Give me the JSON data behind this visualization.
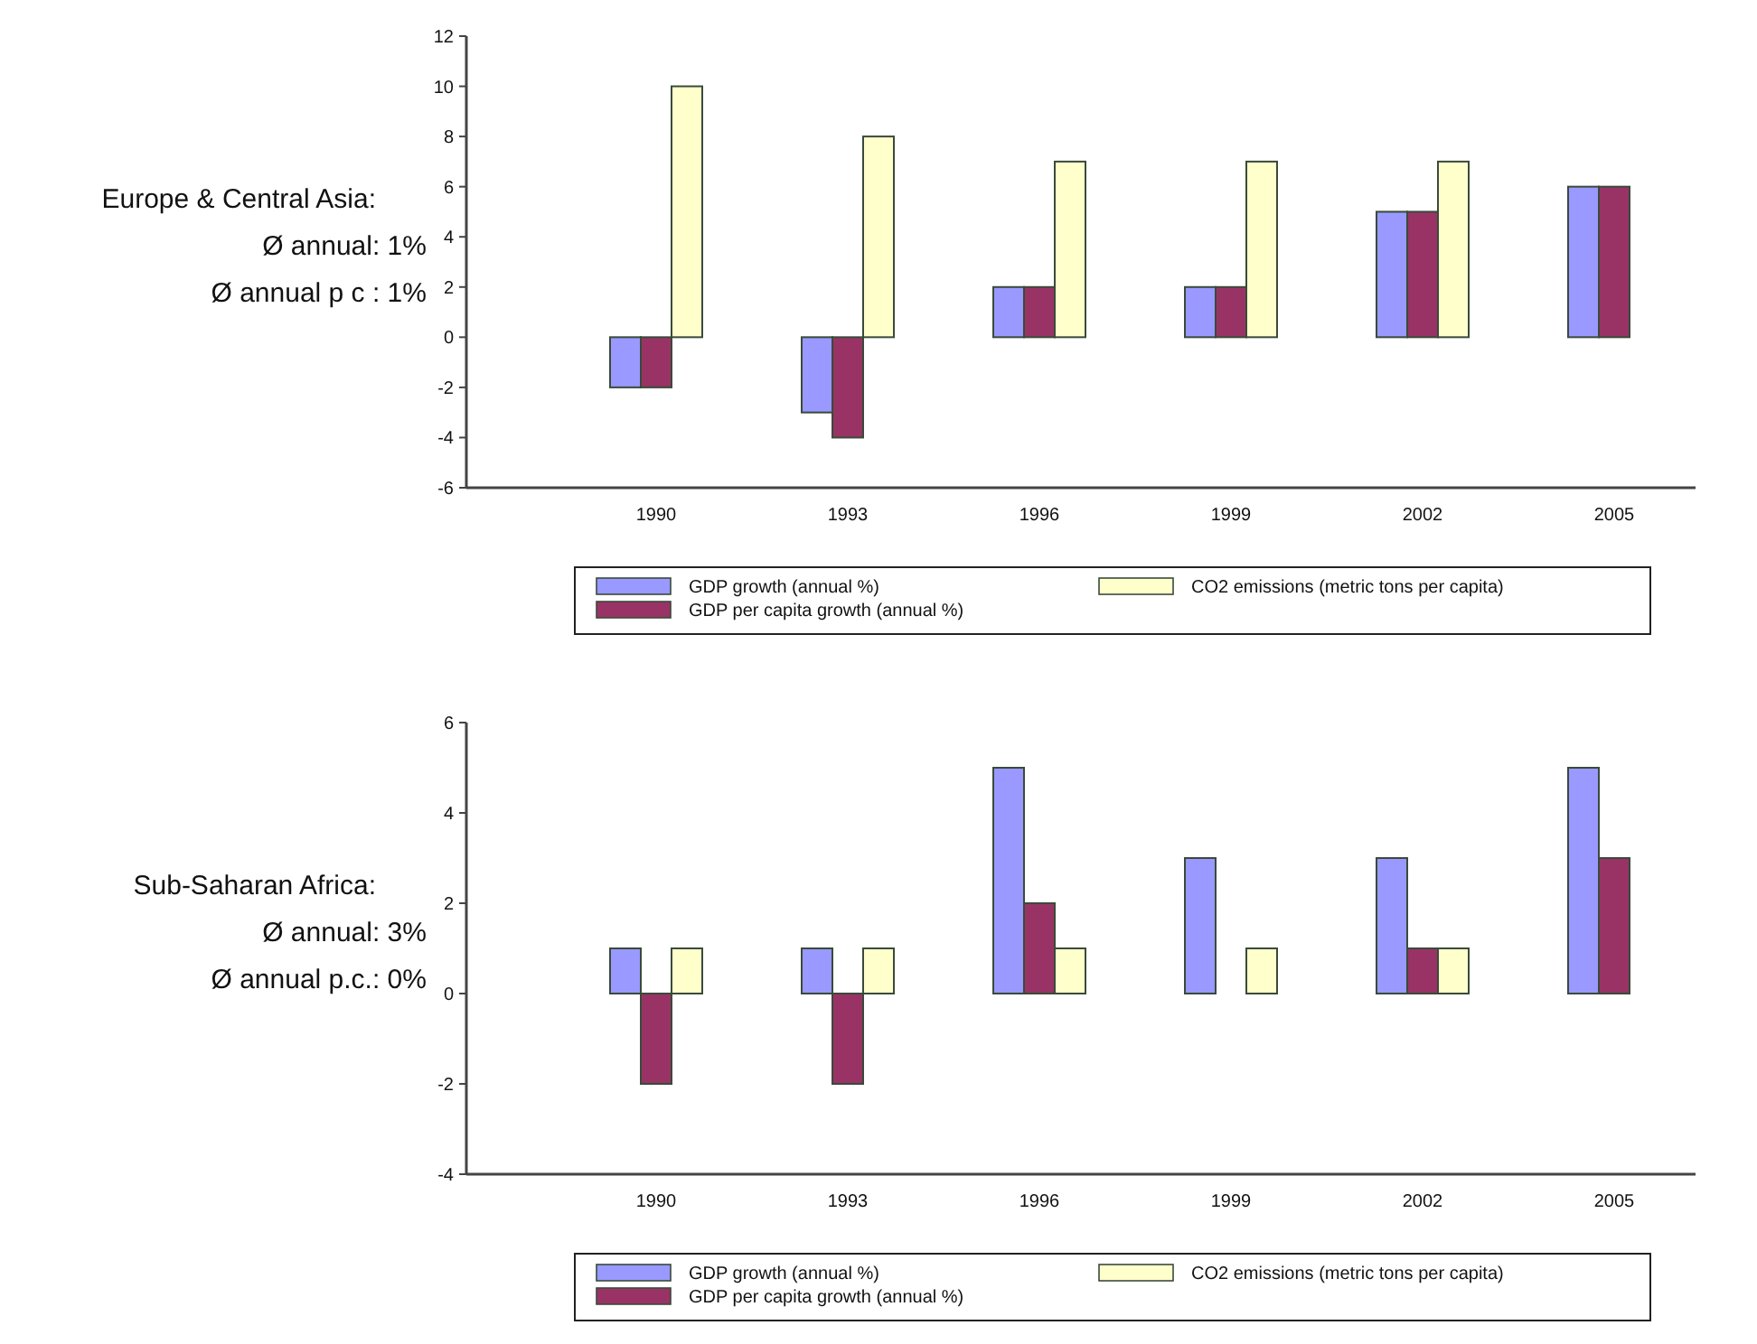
{
  "chart_data": [
    {
      "type": "bar",
      "categories": [
        "1990",
        "1993",
        "1996",
        "1999",
        "2002",
        "2005"
      ],
      "series": [
        {
          "name": "GDP growth (annual %)",
          "color": "#9999ff",
          "values": [
            -2,
            -3,
            2,
            2,
            5,
            6
          ]
        },
        {
          "name": "GDP per capita growth (annual %)",
          "color": "#993366",
          "values": [
            -2,
            -4,
            2,
            2,
            5,
            6
          ]
        },
        {
          "name": "CO2 emissions (metric tons per capita)",
          "color": "#ffffcc",
          "values": [
            10,
            8,
            7,
            7,
            7,
            null
          ]
        }
      ],
      "ylim": [
        -6,
        12
      ],
      "yticks": [
        -6,
        -4,
        -2,
        0,
        2,
        4,
        6,
        8,
        10,
        12
      ],
      "grid": false,
      "legend": "bottom",
      "annotations": [
        "Europe & Central Asia:",
        "Ø annual: 1%",
        "Ø annual p c : 1%"
      ]
    },
    {
      "type": "bar",
      "categories": [
        "1990",
        "1993",
        "1996",
        "1999",
        "2002",
        "2005"
      ],
      "series": [
        {
          "name": "GDP growth (annual %)",
          "color": "#9999ff",
          "values": [
            1,
            1,
            5,
            3,
            3,
            5
          ]
        },
        {
          "name": "GDP per capita growth (annual %)",
          "color": "#993366",
          "values": [
            -2,
            -2,
            2,
            null,
            1,
            3
          ]
        },
        {
          "name": "CO2 emissions (metric tons per capita)",
          "color": "#ffffcc",
          "values": [
            1,
            1,
            1,
            1,
            1,
            null
          ]
        }
      ],
      "ylim": [
        -4,
        6
      ],
      "yticks": [
        -4,
        -2,
        0,
        2,
        4,
        6
      ],
      "grid": false,
      "legend": "bottom",
      "annotations": [
        "Sub-Saharan Africa:",
        "Ø annual: 3%",
        "Ø annual p.c.: 0%"
      ]
    }
  ]
}
